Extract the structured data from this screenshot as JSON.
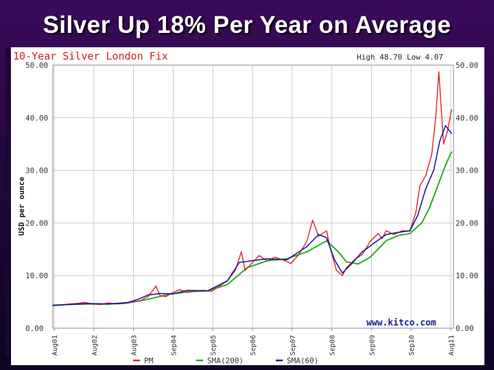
{
  "slide": {
    "title": "Silver Up 18% Per Year on Average"
  },
  "chart_data": {
    "type": "line",
    "title": "10-Year Silver London Fix",
    "annotation": "High 48.70 Low 4.07",
    "watermark": "www.kitco.com",
    "ylabel": "USD per ounce",
    "ylim": [
      0,
      50
    ],
    "y_ticks": [
      "0.00",
      "10.00",
      "20.00",
      "30.00",
      "40.00",
      "50.00"
    ],
    "x_ticks": [
      "Aug01",
      "Aug02",
      "Aug03",
      "Sep04",
      "Sep05",
      "Sep06",
      "Sep07",
      "Sep08",
      "Sep09",
      "Sep10",
      "Aug11"
    ],
    "xlim": [
      2001.6,
      2011.7
    ],
    "grid": true,
    "legend_position": "bottom",
    "colors": {
      "PM": "#e02020",
      "SMA(200)": "#22b022",
      "SMA(60)": "#1a1a9a",
      "grid": "#c8c8c8"
    },
    "series": [
      {
        "name": "PM",
        "x": [
          2001.6,
          2001.8,
          2002.0,
          2002.2,
          2002.4,
          2002.6,
          2002.8,
          2003.0,
          2003.2,
          2003.4,
          2003.6,
          2003.8,
          2004.0,
          2004.2,
          2004.3,
          2004.45,
          2004.6,
          2004.8,
          2005.0,
          2005.2,
          2005.4,
          2005.6,
          2005.8,
          2006.0,
          2006.2,
          2006.35,
          2006.45,
          2006.6,
          2006.8,
          2007.0,
          2007.2,
          2007.4,
          2007.6,
          2007.8,
          2008.0,
          2008.15,
          2008.3,
          2008.5,
          2008.6,
          2008.75,
          2008.9,
          2009.0,
          2009.2,
          2009.4,
          2009.6,
          2009.8,
          2009.9,
          2010.0,
          2010.2,
          2010.4,
          2010.6,
          2010.75,
          2010.85,
          2011.0,
          2011.15,
          2011.25,
          2011.33,
          2011.45,
          2011.55,
          2011.65
        ],
        "values": [
          4.3,
          4.4,
          4.6,
          4.7,
          4.9,
          4.6,
          4.5,
          4.8,
          4.6,
          4.7,
          5.0,
          5.2,
          6.0,
          8.0,
          6.2,
          6.0,
          6.7,
          7.3,
          6.8,
          7.1,
          7.2,
          7.0,
          8.0,
          9.0,
          11.0,
          14.5,
          11.0,
          12.2,
          13.8,
          12.8,
          13.5,
          13.0,
          12.3,
          14.0,
          16.5,
          20.5,
          17.5,
          18.5,
          15.0,
          11.0,
          10.0,
          11.5,
          13.0,
          14.0,
          16.5,
          18.0,
          17.0,
          18.5,
          17.8,
          18.5,
          18.5,
          22.0,
          27.0,
          29.0,
          33.0,
          40.0,
          48.7,
          35.0,
          37.5,
          41.5
        ]
      },
      {
        "name": "SMA(200)",
        "x": [
          2001.6,
          2002.0,
          2002.5,
          2003.0,
          2003.5,
          2004.0,
          2004.5,
          2005.0,
          2005.5,
          2006.0,
          2006.5,
          2007.0,
          2007.5,
          2008.0,
          2008.5,
          2008.8,
          2009.0,
          2009.3,
          2009.6,
          2010.0,
          2010.3,
          2010.6,
          2010.9,
          2011.1,
          2011.3,
          2011.5,
          2011.65
        ],
        "values": [
          4.4,
          4.5,
          4.6,
          4.6,
          4.8,
          5.5,
          6.4,
          6.9,
          7.1,
          8.3,
          11.5,
          12.8,
          13.2,
          14.5,
          16.6,
          14.5,
          12.6,
          12.2,
          13.5,
          16.6,
          17.6,
          18.0,
          20.0,
          23.0,
          27.0,
          31.0,
          33.5
        ]
      },
      {
        "name": "SMA(60)",
        "x": [
          2001.6,
          2002.0,
          2002.5,
          2003.0,
          2003.5,
          2003.75,
          2004.0,
          2004.3,
          2004.6,
          2005.0,
          2005.5,
          2006.0,
          2006.3,
          2006.6,
          2007.0,
          2007.5,
          2008.0,
          2008.3,
          2008.5,
          2008.7,
          2008.9,
          2009.1,
          2009.4,
          2009.7,
          2010.0,
          2010.3,
          2010.6,
          2010.8,
          2011.0,
          2011.2,
          2011.35,
          2011.5,
          2011.65
        ],
        "values": [
          4.3,
          4.5,
          4.7,
          4.6,
          4.9,
          5.5,
          6.3,
          6.6,
          6.5,
          7.2,
          7.1,
          9.0,
          12.5,
          12.8,
          13.2,
          13.0,
          15.5,
          17.8,
          17.2,
          13.0,
          10.5,
          12.0,
          14.5,
          16.2,
          17.8,
          18.2,
          18.5,
          21.5,
          26.5,
          30.0,
          35.5,
          38.5,
          37.0
        ]
      }
    ]
  }
}
